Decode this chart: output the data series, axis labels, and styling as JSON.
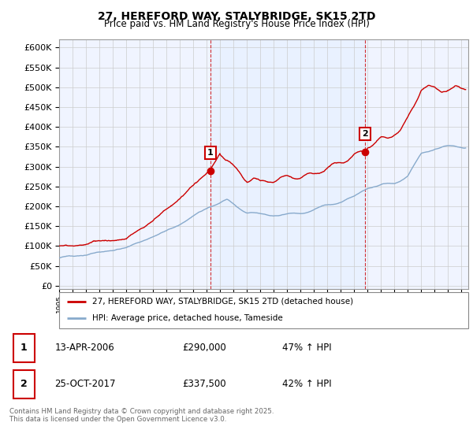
{
  "title": "27, HEREFORD WAY, STALYBRIDGE, SK15 2TD",
  "subtitle": "Price paid vs. HM Land Registry's House Price Index (HPI)",
  "yticks": [
    0,
    50000,
    100000,
    150000,
    200000,
    250000,
    300000,
    350000,
    400000,
    450000,
    500000,
    550000,
    600000
  ],
  "ylim": [
    -8000,
    620000
  ],
  "xlim": [
    1995,
    2025.5
  ],
  "sale1": {
    "date_num": 2006.28,
    "price": 290000,
    "label": "1"
  },
  "sale2": {
    "date_num": 2017.81,
    "price": 337500,
    "label": "2"
  },
  "legend_entries": [
    {
      "label": "27, HEREFORD WAY, STALYBRIDGE, SK15 2TD (detached house)",
      "color": "#cc0000"
    },
    {
      "label": "HPI: Average price, detached house, Tameside",
      "color": "#88aacc"
    }
  ],
  "table": [
    {
      "num": "1",
      "date": "13-APR-2006",
      "price": "£290,000",
      "hpi": "47% ↑ HPI"
    },
    {
      "num": "2",
      "date": "25-OCT-2017",
      "price": "£337,500",
      "hpi": "42% ↑ HPI"
    }
  ],
  "footnote": "Contains HM Land Registry data © Crown copyright and database right 2025.\nThis data is licensed under the Open Government Licence v3.0.",
  "background_color": "#ffffff",
  "grid_color": "#cccccc",
  "red_line_color": "#cc0000",
  "blue_line_color": "#88aacc",
  "shade_color": "#ddeeff",
  "axbg_color": "#f0f4ff"
}
